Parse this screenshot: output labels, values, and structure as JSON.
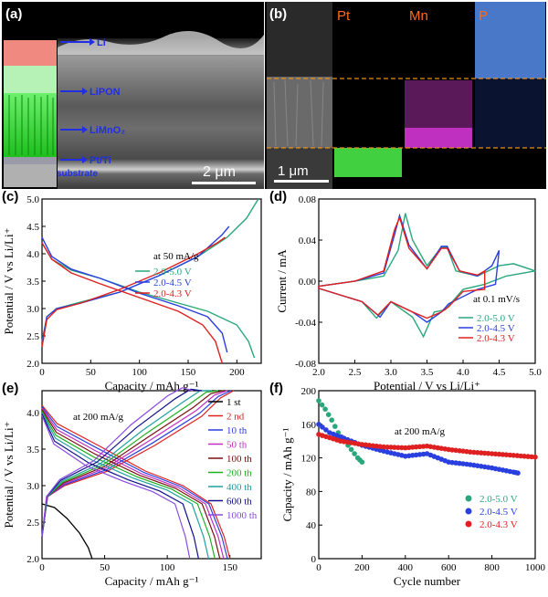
{
  "panel_a": {
    "label": "(a)",
    "layers": {
      "li": "Li",
      "lipon": "LiPON",
      "cathode": "LiMnO₂",
      "current_collector": "Pt/Ti",
      "substrate": "substrate"
    },
    "scale_bar": "2 μm"
  },
  "panel_b": {
    "label": "(b)",
    "maps": [
      {
        "element": "Pt",
        "color": "#ff6a1a"
      },
      {
        "element": "Mn",
        "color": "#ff6a1a"
      },
      {
        "element": "P",
        "color": "#ff6a1a"
      }
    ],
    "scale_bar": "1 μm"
  },
  "chart_data": [
    {
      "panel": "(c)",
      "type": "line",
      "xlabel": "Capacity / mAh g⁻¹",
      "ylabel": "Potential / V vs Li/Li⁺",
      "xlim": [
        0,
        225
      ],
      "ylim": [
        2.0,
        5.0
      ],
      "xticks": [
        0,
        50,
        100,
        150,
        200
      ],
      "yticks": [
        2.0,
        2.5,
        3.0,
        3.5,
        4.0,
        4.5,
        5.0
      ],
      "xtick_labels": [
        "0",
        "50",
        "100",
        "150",
        "200"
      ],
      "ytick_labels": [
        "2.0",
        "2.5",
        "3.0",
        "3.5",
        "4.0",
        "4.5",
        "5.0"
      ],
      "annotation": "at 50 mA/g",
      "series": [
        {
          "name": "2.0-5.0 V",
          "color": "#2aa77a",
          "charge": [
            [
              0,
              2.4
            ],
            [
              5,
              2.85
            ],
            [
              15,
              3.0
            ],
            [
              40,
              3.12
            ],
            [
              80,
              3.3
            ],
            [
              120,
              3.6
            ],
            [
              160,
              3.95
            ],
            [
              190,
              4.3
            ],
            [
              210,
              4.65
            ],
            [
              222,
              5.0
            ]
          ],
          "discharge": [
            [
              0,
              4.2
            ],
            [
              10,
              3.9
            ],
            [
              30,
              3.7
            ],
            [
              60,
              3.55
            ],
            [
              100,
              3.3
            ],
            [
              140,
              3.1
            ],
            [
              170,
              2.95
            ],
            [
              200,
              2.7
            ],
            [
              212,
              2.4
            ],
            [
              218,
              2.1
            ]
          ]
        },
        {
          "name": "2.0-4.5 V",
          "color": "#2a3fe0",
          "charge": [
            [
              0,
              2.35
            ],
            [
              5,
              2.85
            ],
            [
              15,
              3.0
            ],
            [
              40,
              3.1
            ],
            [
              80,
              3.3
            ],
            [
              120,
              3.6
            ],
            [
              160,
              3.95
            ],
            [
              185,
              4.35
            ],
            [
              192,
              4.5
            ]
          ],
          "discharge": [
            [
              0,
              4.3
            ],
            [
              10,
              3.95
            ],
            [
              30,
              3.72
            ],
            [
              60,
              3.55
            ],
            [
              100,
              3.28
            ],
            [
              140,
              3.05
            ],
            [
              170,
              2.85
            ],
            [
              185,
              2.55
            ],
            [
              190,
              2.2
            ]
          ]
        },
        {
          "name": "2.0-4.3 V",
          "color": "#e02020",
          "charge": [
            [
              0,
              2.3
            ],
            [
              5,
              2.8
            ],
            [
              15,
              2.98
            ],
            [
              40,
              3.1
            ],
            [
              80,
              3.35
            ],
            [
              120,
              3.65
            ],
            [
              160,
              4.0
            ],
            [
              180,
              4.2
            ],
            [
              188,
              4.3
            ]
          ],
          "discharge": [
            [
              0,
              4.2
            ],
            [
              10,
              3.9
            ],
            [
              30,
              3.65
            ],
            [
              60,
              3.45
            ],
            [
              100,
              3.2
            ],
            [
              140,
              2.95
            ],
            [
              165,
              2.7
            ],
            [
              178,
              2.4
            ],
            [
              185,
              2.0
            ]
          ]
        }
      ]
    },
    {
      "panel": "(d)",
      "type": "line",
      "xlabel": "Potential / V vs Li/Li⁺",
      "ylabel": "Current / mA",
      "xlim": [
        2.0,
        5.0
      ],
      "ylim": [
        -0.08,
        0.08
      ],
      "xticks": [
        2.0,
        2.5,
        3.0,
        3.5,
        4.0,
        4.5,
        5.0
      ],
      "yticks": [
        -0.08,
        -0.04,
        0.0,
        0.04,
        0.08
      ],
      "xtick_labels": [
        "2.0",
        "2.5",
        "3.0",
        "3.5",
        "4.0",
        "4.5",
        "5.0"
      ],
      "ytick_labels": [
        "-0.08",
        "-0.04",
        "0.00",
        "0.04",
        "0.08"
      ],
      "annotation": "at 0.1 mV/s",
      "series": [
        {
          "name": "2.0-5.0 V",
          "color": "#2aa77a",
          "points": [
            [
              2.0,
              -0.005
            ],
            [
              2.5,
              0.0
            ],
            [
              2.9,
              0.005
            ],
            [
              3.1,
              0.03
            ],
            [
              3.2,
              0.066
            ],
            [
              3.3,
              0.04
            ],
            [
              3.5,
              0.015
            ],
            [
              3.7,
              0.033
            ],
            [
              3.78,
              0.033
            ],
            [
              3.9,
              0.01
            ],
            [
              4.2,
              0.005
            ],
            [
              4.5,
              0.015
            ],
            [
              4.7,
              0.017
            ],
            [
              5.0,
              0.01
            ],
            [
              4.6,
              0.005
            ],
            [
              4.3,
              -0.003
            ],
            [
              4.0,
              -0.008
            ],
            [
              3.75,
              -0.028
            ],
            [
              3.6,
              -0.03
            ],
            [
              3.45,
              -0.054
            ],
            [
              3.3,
              -0.035
            ],
            [
              3.0,
              -0.02
            ],
            [
              2.8,
              -0.036
            ],
            [
              2.6,
              -0.02
            ],
            [
              2.0,
              -0.007
            ]
          ]
        },
        {
          "name": "2.0-4.5 V",
          "color": "#2a3fe0",
          "points": [
            [
              2.0,
              -0.005
            ],
            [
              2.5,
              0.0
            ],
            [
              2.9,
              0.008
            ],
            [
              3.05,
              0.045
            ],
            [
              3.12,
              0.064
            ],
            [
              3.25,
              0.035
            ],
            [
              3.5,
              0.012
            ],
            [
              3.7,
              0.034
            ],
            [
              3.78,
              0.034
            ],
            [
              3.95,
              0.01
            ],
            [
              4.2,
              0.005
            ],
            [
              4.4,
              0.015
            ],
            [
              4.5,
              0.03
            ],
            [
              4.45,
              -0.003
            ],
            [
              4.2,
              -0.008
            ],
            [
              3.8,
              -0.022
            ],
            [
              3.7,
              -0.03
            ],
            [
              3.5,
              -0.04
            ],
            [
              3.3,
              -0.03
            ],
            [
              3.0,
              -0.02
            ],
            [
              2.85,
              -0.035
            ],
            [
              2.6,
              -0.02
            ],
            [
              2.0,
              -0.007
            ]
          ]
        },
        {
          "name": "2.0-4.3 V",
          "color": "#e02020",
          "points": [
            [
              2.0,
              -0.005
            ],
            [
              2.5,
              0.0
            ],
            [
              2.9,
              0.01
            ],
            [
              3.05,
              0.05
            ],
            [
              3.12,
              0.062
            ],
            [
              3.25,
              0.032
            ],
            [
              3.5,
              0.012
            ],
            [
              3.7,
              0.032
            ],
            [
              3.78,
              0.032
            ],
            [
              3.95,
              0.01
            ],
            [
              4.2,
              0.006
            ],
            [
              4.3,
              0.01
            ],
            [
              4.3,
              -0.008
            ],
            [
              4.0,
              -0.01
            ],
            [
              3.8,
              -0.025
            ],
            [
              3.7,
              -0.03
            ],
            [
              3.5,
              -0.036
            ],
            [
              3.3,
              -0.03
            ],
            [
              3.0,
              -0.02
            ],
            [
              2.82,
              -0.033
            ],
            [
              2.6,
              -0.02
            ],
            [
              2.0,
              -0.007
            ]
          ]
        }
      ]
    },
    {
      "panel": "(e)",
      "type": "line",
      "xlabel": "Capacity / mAh g⁻¹",
      "ylabel": "Potential / V vs Li/Li⁺",
      "xlim": [
        0,
        175
      ],
      "ylim": [
        2.0,
        4.3
      ],
      "xticks": [
        0,
        50,
        100,
        150
      ],
      "yticks": [
        2.0,
        2.5,
        3.0,
        3.5,
        4.0
      ],
      "xtick_labels": [
        "0",
        "50",
        "100",
        "150"
      ],
      "ytick_labels": [
        "2.0",
        "2.5",
        "3.0",
        "3.5",
        "4.0"
      ],
      "annotation": "at 200 mA/g",
      "series": [
        {
          "name": "1 st",
          "color": "#000000",
          "capacity": 40
        },
        {
          "name": "2 nd",
          "color": "#e02020",
          "capacity": 150
        },
        {
          "name": "10 th",
          "color": "#2a3fe0",
          "capacity": 148
        },
        {
          "name": "50 th",
          "color": "#c030c0",
          "capacity": 145
        },
        {
          "name": "100 th",
          "color": "#7a1010",
          "capacity": 142
        },
        {
          "name": "200 th",
          "color": "#20b020",
          "capacity": 138
        },
        {
          "name": "400 th",
          "color": "#20a0a0",
          "capacity": 133
        },
        {
          "name": "600 th",
          "color": "#10108a",
          "capacity": 125
        },
        {
          "name": "1000 th",
          "color": "#8a4ae0",
          "capacity": 118
        }
      ]
    },
    {
      "panel": "(f)",
      "type": "scatter",
      "xlabel": "Cycle number",
      "ylabel": "Capacity / mAh g⁻¹",
      "xlim": [
        0,
        1000
      ],
      "ylim": [
        0,
        200
      ],
      "xticks": [
        0,
        200,
        400,
        600,
        800,
        1000
      ],
      "yticks": [
        0,
        40,
        80,
        120,
        160,
        200
      ],
      "xtick_labels": [
        "0",
        "200",
        "400",
        "600",
        "800",
        "1000"
      ],
      "ytick_labels": [
        "0",
        "40",
        "80",
        "120",
        "160",
        "200"
      ],
      "annotation": "at 200 mA/g",
      "series": [
        {
          "name": "2.0-5.0 V",
          "color": "#2aa77a",
          "points": [
            [
              0,
              188
            ],
            [
              30,
              178
            ],
            [
              60,
              165
            ],
            [
              90,
              150
            ],
            [
              120,
              140
            ],
            [
              150,
              130
            ],
            [
              180,
              120
            ],
            [
              200,
              115
            ]
          ]
        },
        {
          "name": "2.0-4.5 V",
          "color": "#2a3fe0",
          "points": [
            [
              0,
              160
            ],
            [
              50,
              150
            ],
            [
              100,
              145
            ],
            [
              200,
              135
            ],
            [
              300,
              128
            ],
            [
              400,
              122
            ],
            [
              500,
              125
            ],
            [
              600,
              115
            ],
            [
              700,
              112
            ],
            [
              800,
              108
            ],
            [
              900,
              103
            ],
            [
              920,
              102
            ]
          ]
        },
        {
          "name": "2.0-4.3 V",
          "color": "#e02020",
          "points": [
            [
              0,
              148
            ],
            [
              100,
              140
            ],
            [
              200,
              136
            ],
            [
              300,
              133
            ],
            [
              400,
              132
            ],
            [
              500,
              134
            ],
            [
              600,
              130
            ],
            [
              700,
              127
            ],
            [
              800,
              125
            ],
            [
              900,
              123
            ],
            [
              1000,
              121
            ]
          ]
        }
      ]
    }
  ]
}
